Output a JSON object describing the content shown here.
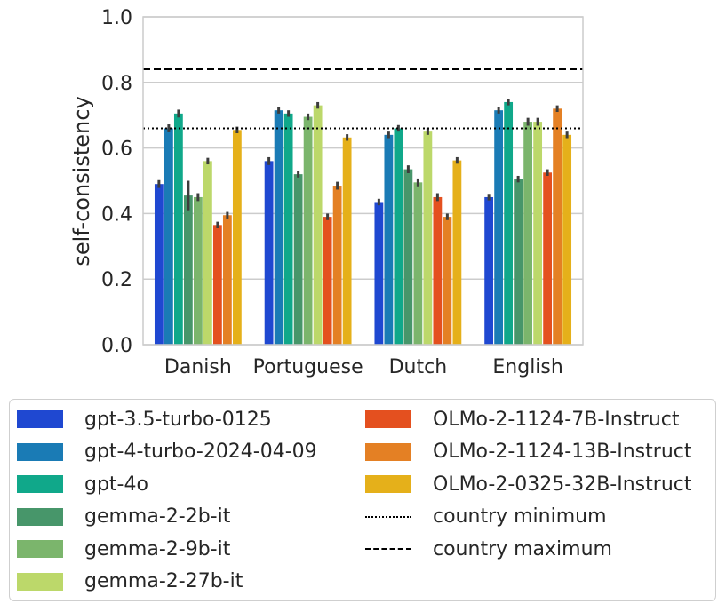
{
  "chart_data": {
    "type": "bar",
    "title": "",
    "xlabel": "",
    "ylabel": "self-consistency",
    "ylim": [
      0,
      1.0
    ],
    "yticks": [
      "0.0",
      "0.2",
      "0.4",
      "0.6",
      "0.8",
      "1.0"
    ],
    "grid": "horizontal",
    "legend_placement": "below",
    "categories": [
      "Danish",
      "Portuguese",
      "Dutch",
      "English"
    ],
    "series": [
      {
        "name": "gpt-3.5-turbo-0125",
        "color": "#1f48d1",
        "values": [
          0.49,
          0.56,
          0.435,
          0.45
        ],
        "err": [
          0.012,
          0.012,
          0.01,
          0.01
        ]
      },
      {
        "name": "gpt-4-turbo-2024-04-09",
        "color": "#1a7bb5",
        "values": [
          0.66,
          0.715,
          0.64,
          0.715
        ],
        "err": [
          0.012,
          0.01,
          0.01,
          0.01
        ]
      },
      {
        "name": "gpt-4o",
        "color": "#10a88a",
        "values": [
          0.705,
          0.705,
          0.66,
          0.74
        ],
        "err": [
          0.012,
          0.01,
          0.01,
          0.01
        ]
      },
      {
        "name": "gemma-2-2b-it",
        "color": "#47966a",
        "values": [
          0.455,
          0.52,
          0.535,
          0.505
        ],
        "err": [
          0.045,
          0.01,
          0.012,
          0.01
        ]
      },
      {
        "name": "gemma-2-9b-it",
        "color": "#7bb56c",
        "values": [
          0.45,
          0.695,
          0.495,
          0.68
        ],
        "err": [
          0.012,
          0.01,
          0.012,
          0.012
        ]
      },
      {
        "name": "gemma-2-27b-it",
        "color": "#bcd86a",
        "values": [
          0.56,
          0.73,
          0.65,
          0.68
        ],
        "err": [
          0.01,
          0.01,
          0.01,
          0.012
        ]
      },
      {
        "name": "OLMo-2-1124-7B-Instruct",
        "color": "#e4501f",
        "values": [
          0.365,
          0.39,
          0.45,
          0.525
        ],
        "err": [
          0.01,
          0.01,
          0.012,
          0.01
        ]
      },
      {
        "name": "OLMo-2-1124-13B-Instruct",
        "color": "#e48024",
        "values": [
          0.395,
          0.485,
          0.39,
          0.72
        ],
        "err": [
          0.01,
          0.012,
          0.01,
          0.01
        ]
      },
      {
        "name": "OLMo-2-0325-32B-Instruct",
        "color": "#e5b01a",
        "values": [
          0.655,
          0.632,
          0.562,
          0.64
        ],
        "err": [
          0.01,
          0.01,
          0.01,
          0.01
        ]
      }
    ],
    "reference_lines": [
      {
        "name": "country minimum",
        "value": 0.66,
        "style": "dotted"
      },
      {
        "name": "country maximum",
        "value": 0.84,
        "style": "dashed"
      }
    ]
  }
}
